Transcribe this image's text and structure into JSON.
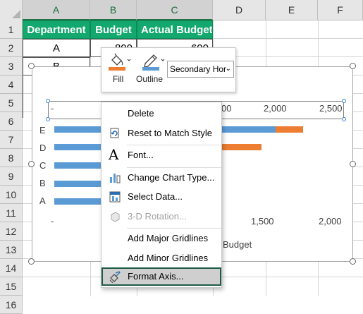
{
  "columns": [
    "A",
    "B",
    "C",
    "D",
    "E",
    "F"
  ],
  "selected_columns": [
    "A",
    "B",
    "C"
  ],
  "rows": [
    "1",
    "2",
    "3",
    "4",
    "5",
    "6",
    "7",
    "8",
    "9",
    "10",
    "11",
    "12",
    "13",
    "14",
    "15",
    "16"
  ],
  "table": {
    "headers": [
      "Department",
      "Budget",
      "Actual Budget"
    ],
    "row2": [
      "A",
      "800",
      "600"
    ],
    "row3": [
      "B"
    ]
  },
  "mini_toolbar": {
    "fill_label": "Fill",
    "outline_label": "Outline",
    "element_selector": "Secondary Hor",
    "fill_color": "#ed7d31",
    "outline_color": "#5b9bd5"
  },
  "chart": {
    "secondary_axis_ticks": [
      "-",
      "00",
      "2,000",
      "2,500"
    ],
    "primary_axis_ticks": [
      "-",
      "1,500",
      "2,000"
    ],
    "categories": [
      "E",
      "D",
      "C",
      "B",
      "A"
    ],
    "axis_title_fragment": "Budget",
    "series_colors": {
      "budget": "#5b9bd5",
      "actual": "#ed7d31"
    }
  },
  "chart_data": {
    "type": "bar",
    "orientation": "horizontal",
    "categories": [
      "A",
      "B",
      "C",
      "D",
      "E"
    ],
    "series": [
      {
        "name": "Budget",
        "values": [
          800,
          null,
          null,
          null,
          null
        ]
      },
      {
        "name": "Actual Budget",
        "values": [
          600,
          null,
          null,
          null,
          null
        ]
      }
    ],
    "xlabel": "Budget",
    "grid": false
  },
  "context_menu": {
    "items": [
      {
        "label": "Delete",
        "icon": "none",
        "enabled": true
      },
      {
        "label": "Reset to Match Style",
        "icon": "reset-style-icon",
        "enabled": true
      },
      {
        "label": "Font...",
        "icon": "font-icon",
        "enabled": true
      },
      {
        "label": "Change Chart Type...",
        "icon": "chart-type-icon",
        "enabled": true
      },
      {
        "label": "Select Data...",
        "icon": "select-data-icon",
        "enabled": true
      },
      {
        "label": "3-D Rotation...",
        "icon": "rotation-icon",
        "enabled": false
      },
      {
        "label": "Add Major Gridlines",
        "icon": "none",
        "enabled": true
      },
      {
        "label": "Add Minor Gridlines",
        "icon": "none",
        "enabled": true
      },
      {
        "label": "Format Axis...",
        "icon": "format-axis-icon",
        "enabled": true,
        "highlighted": true
      }
    ]
  }
}
